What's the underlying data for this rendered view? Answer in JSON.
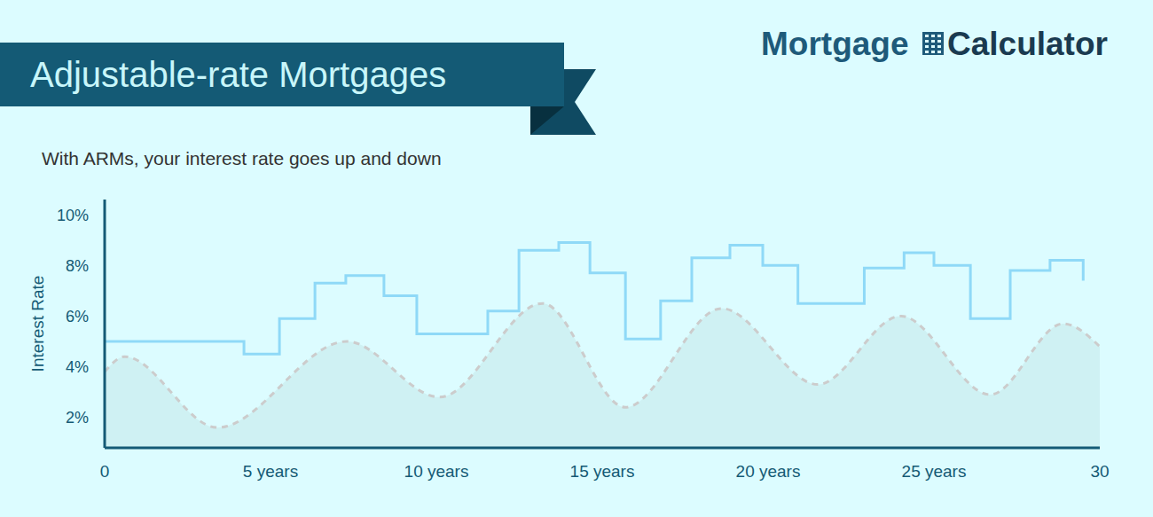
{
  "chart_data": {
    "type": "line",
    "title": "Adjustable-rate Mortgages",
    "subtitle": "With ARMs, your interest rate goes up and down",
    "logo": [
      "Mortgage",
      "Calculator"
    ],
    "y_label": "Interest Rate",
    "xlim": [
      0,
      30
    ],
    "ylim": [
      0.8,
      10.6
    ],
    "xticks": [
      0,
      {
        "value": 5,
        "label": "5 years"
      },
      {
        "value": 10,
        "label": "10 years"
      },
      {
        "value": 15,
        "label": "15 years"
      },
      {
        "value": 20,
        "label": "20 years"
      },
      {
        "value": 25,
        "label": "25 years"
      },
      30
    ],
    "yticks": [
      {
        "value": 2,
        "label": "2%"
      },
      {
        "value": 4,
        "label": "4%"
      },
      {
        "value": 6,
        "label": "6%"
      },
      {
        "value": 8,
        "label": "8%"
      },
      {
        "value": 10,
        "label": "10%"
      }
    ],
    "grid": false,
    "series": [
      {
        "type": "area",
        "line_style": "dashed",
        "color": "#cccccc",
        "x": [
          0,
          0.6,
          3.4,
          7.3,
          10.1,
          13.2,
          15.7,
          18.6,
          21.5,
          24.0,
          26.7,
          28.9,
          30
        ],
        "values": [
          3.8,
          4.4,
          1.6,
          5.0,
          2.8,
          6.5,
          2.4,
          6.3,
          3.3,
          6.0,
          2.9,
          5.7,
          4.8
        ]
      },
      {
        "type": "line",
        "line_style": "step",
        "color": "#8fd9f7",
        "x": [
          0,
          4.2,
          5.27,
          6.34,
          7.27,
          8.42,
          9.41,
          11.55,
          12.49,
          13.69,
          14.63,
          15.7,
          16.76,
          17.7,
          18.85,
          19.84,
          20.9,
          22.9,
          24.1,
          25.0,
          26.1,
          27.3,
          28.5,
          29.5
        ],
        "values": [
          5.0,
          4.5,
          5.9,
          7.3,
          7.6,
          6.8,
          5.3,
          6.2,
          8.6,
          8.9,
          7.7,
          5.1,
          6.6,
          8.3,
          8.8,
          8.0,
          6.5,
          7.9,
          8.5,
          8.0,
          5.9,
          7.8,
          8.2,
          7.4
        ]
      }
    ]
  }
}
